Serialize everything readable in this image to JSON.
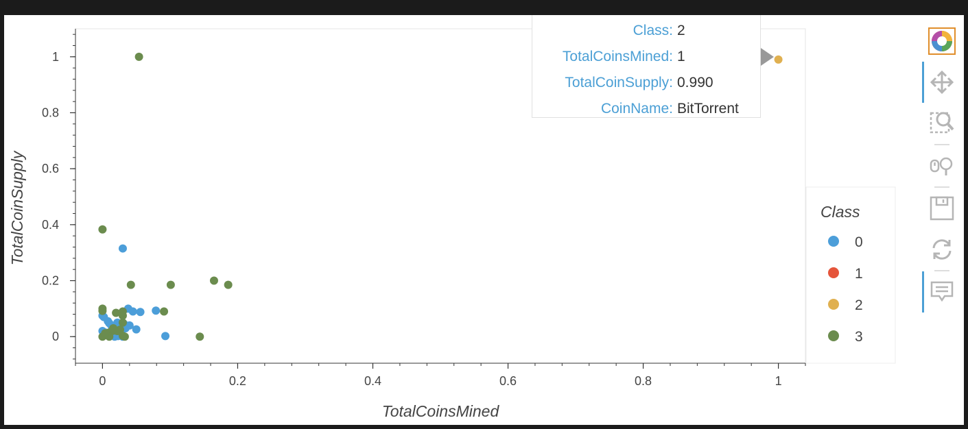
{
  "chart_data": {
    "type": "scatter",
    "title": "",
    "xlabel": "TotalCoinsMined",
    "ylabel": "TotalCoinSupply",
    "xlim": [
      -0.04,
      1.04
    ],
    "ylim": [
      -0.095,
      1.1
    ],
    "xticks": [
      0,
      0.2,
      0.4,
      0.6,
      0.8,
      1
    ],
    "xtick_labels": [
      "0",
      "0.2",
      "0.4",
      "0.6",
      "0.8",
      "1"
    ],
    "yticks": [
      0,
      0.2,
      0.4,
      0.6,
      0.8,
      1
    ],
    "ytick_labels": [
      "0",
      "0.2",
      "0.4",
      "0.6",
      "0.8",
      "1"
    ],
    "grid": false,
    "legend": {
      "title": "Class",
      "placement": "right"
    },
    "series": [
      {
        "name": "0",
        "color": "#4c9ed9",
        "points": [
          [
            0.03,
            0.315
          ],
          [
            0.038,
            0.1
          ],
          [
            0.045,
            0.09
          ],
          [
            0.056,
            0.088
          ],
          [
            0.079,
            0.093
          ],
          [
            0.093,
            0.002
          ],
          [
            0.05,
            0.026
          ],
          [
            0.0,
            0.075
          ],
          [
            0.002,
            0.07
          ],
          [
            0.008,
            0.055
          ],
          [
            0.01,
            0.048
          ],
          [
            0.013,
            0.04
          ],
          [
            0.022,
            0.05
          ],
          [
            0.025,
            0.045
          ],
          [
            0.032,
            0.045
          ],
          [
            0.035,
            0.035
          ],
          [
            0.04,
            0.04
          ],
          [
            0.0,
            0.02
          ],
          [
            0.004,
            0.015
          ],
          [
            0.006,
            0.01
          ],
          [
            0.012,
            0.005
          ],
          [
            0.015,
            0.02
          ],
          [
            0.018,
            0.0
          ],
          [
            0.02,
            0.01
          ],
          [
            0.023,
            0.002
          ],
          [
            0.028,
            0.018
          ],
          [
            0.03,
            0.0
          ],
          [
            0.034,
            0.03
          ]
        ]
      },
      {
        "name": "1",
        "color": "#e5553b",
        "points": []
      },
      {
        "name": "2",
        "color": "#e0b050",
        "points": [
          [
            1.0,
            0.99
          ]
        ]
      },
      {
        "name": "3",
        "color": "#6b8c4e",
        "points": [
          [
            0.054,
            1.0
          ],
          [
            0.0,
            0.383
          ],
          [
            0.042,
            0.185
          ],
          [
            0.101,
            0.185
          ],
          [
            0.165,
            0.2
          ],
          [
            0.186,
            0.185
          ],
          [
            0.091,
            0.09
          ],
          [
            0.144,
            0.0
          ],
          [
            0.0,
            0.1
          ],
          [
            0.0,
            0.092
          ],
          [
            0.02,
            0.085
          ],
          [
            0.03,
            0.09
          ],
          [
            0.03,
            0.075
          ],
          [
            0.03,
            0.05
          ],
          [
            0.0,
            0.0
          ],
          [
            0.003,
            0.005
          ],
          [
            0.006,
            0.01
          ],
          [
            0.01,
            0.015
          ],
          [
            0.014,
            0.02
          ],
          [
            0.018,
            0.022
          ],
          [
            0.022,
            0.02
          ],
          [
            0.026,
            0.025
          ],
          [
            0.01,
            0.0
          ],
          [
            0.033,
            0.0
          ],
          [
            0.03,
            0.003
          ],
          [
            0.004,
            0.012
          ],
          [
            0.016,
            0.03
          ]
        ]
      }
    ]
  },
  "tooltip": {
    "rows": [
      {
        "key": "Class:",
        "value": "2"
      },
      {
        "key": "TotalCoinsMined:",
        "value": "1"
      },
      {
        "key": "TotalCoinSupply:",
        "value": "0.990"
      },
      {
        "key": "CoinName:",
        "value": "BitTorrent"
      }
    ]
  },
  "toolbar": {
    "tools": [
      {
        "icon": "bokeh-logo-icon"
      },
      {
        "icon": "pan-icon",
        "active": true
      },
      {
        "icon": "box-zoom-icon",
        "active": false
      },
      {
        "icon": "wheel-zoom-icon",
        "active": false
      },
      {
        "icon": "save-icon",
        "active": false
      },
      {
        "icon": "reset-icon",
        "active": false
      },
      {
        "icon": "hover-icon",
        "active": true
      }
    ]
  }
}
